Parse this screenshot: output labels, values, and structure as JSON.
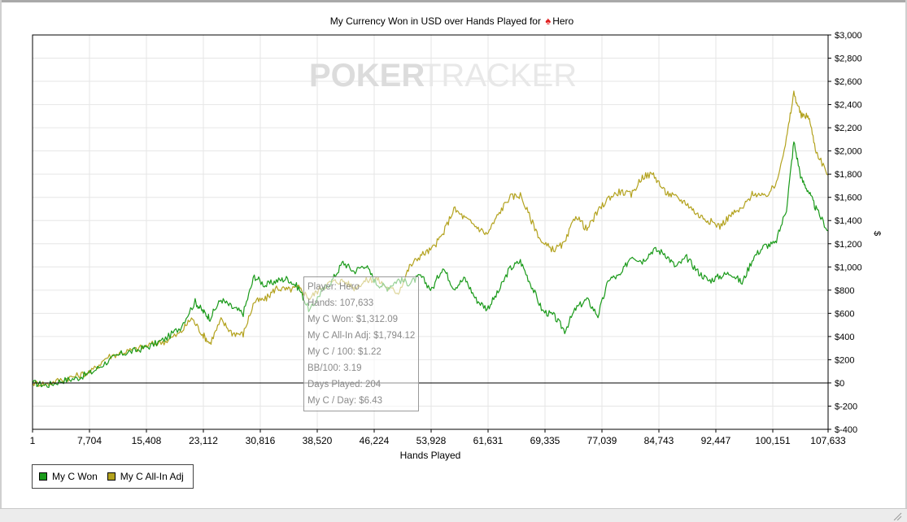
{
  "window": {
    "title_prefix": "My Currency Won in USD over Hands Played for",
    "title_player": "Hero"
  },
  "watermark": {
    "left": "POKER",
    "right": "TRACKER"
  },
  "colors": {
    "won": "#1a9a1a",
    "allin": "#b3a21e",
    "axis": "#000000",
    "grid": "#e6e6e6"
  },
  "tooltip": {
    "player": "Player: Hero",
    "hands": "Hands: 107,633",
    "won": "My C Won: $1,312.09",
    "allin": "My C All-In Adj: $1,794.12",
    "per100": "My C / 100: $1.22",
    "bb100": "BB/100: 3.19",
    "days": "Days Played: 204",
    "perday": "My C / Day: $6.43"
  },
  "chart_data": {
    "type": "line",
    "title": "My Currency Won in USD over Hands Played for Hero",
    "xlabel": "Hands Played",
    "ylabel": "$",
    "xlim": [
      1,
      107633
    ],
    "ylim": [
      -400,
      3000
    ],
    "x_ticks": [
      1,
      7704,
      15408,
      23112,
      30816,
      38520,
      46224,
      53928,
      61631,
      69335,
      77039,
      84743,
      92447,
      100151,
      107633
    ],
    "x_tick_labels": [
      "1",
      "7,704",
      "15,408",
      "23,112",
      "30,816",
      "38,520",
      "46,224",
      "53,928",
      "61,631",
      "69,335",
      "77,039",
      "84,743",
      "92,447",
      "100,151",
      "107,633"
    ],
    "y_ticks": [
      -400,
      -200,
      0,
      200,
      400,
      600,
      800,
      1000,
      1200,
      1400,
      1600,
      1800,
      2000,
      2200,
      2400,
      2600,
      2800,
      3000
    ],
    "y_tick_labels": [
      "$-400",
      "$-200",
      "$0",
      "$200",
      "$400",
      "$600",
      "$800",
      "$1,000",
      "$1,200",
      "$1,400",
      "$1,600",
      "$1,800",
      "$2,000",
      "$2,200",
      "$2,400",
      "$2,600",
      "$2,800",
      "$3,000"
    ],
    "grid": true,
    "legend_position": "bottom-left",
    "series": [
      {
        "name": "My C Won",
        "color": "#1a9a1a",
        "x": [
          1,
          2000,
          4000,
          6000,
          8000,
          10000,
          12000,
          14000,
          16000,
          18000,
          20000,
          22000,
          23000,
          24000,
          25500,
          27000,
          28500,
          30000,
          31500,
          33000,
          34500,
          36000,
          37500,
          39000,
          40500,
          42000,
          43500,
          45000,
          46500,
          48000,
          49500,
          51000,
          52500,
          54000,
          55500,
          57000,
          58500,
          60000,
          61500,
          63000,
          64500,
          66000,
          67500,
          69000,
          70500,
          72000,
          73500,
          75000,
          76500,
          78000,
          79500,
          81000,
          82500,
          84000,
          85500,
          87000,
          88500,
          90000,
          91500,
          93000,
          94500,
          96000,
          97500,
          99000,
          100500,
          102000,
          103000,
          104000,
          105000,
          106000,
          107633
        ],
        "y": [
          0,
          -20,
          20,
          40,
          90,
          180,
          250,
          280,
          320,
          380,
          480,
          700,
          620,
          560,
          720,
          650,
          600,
          920,
          840,
          880,
          900,
          820,
          620,
          780,
          880,
          1040,
          960,
          1020,
          860,
          820,
          890,
          860,
          920,
          800,
          1000,
          820,
          900,
          720,
          640,
          780,
          980,
          1050,
          840,
          620,
          580,
          450,
          640,
          720,
          580,
          900,
          920,
          1100,
          1050,
          1150,
          1120,
          1000,
          1080,
          960,
          880,
          920,
          950,
          860,
          1080,
          1180,
          1200,
          1500,
          2080,
          1760,
          1650,
          1500,
          1312
        ]
      },
      {
        "name": "My C All-In Adj",
        "color": "#b3a21e",
        "x": [
          1,
          2000,
          4000,
          6000,
          8000,
          10000,
          12000,
          14000,
          16000,
          18000,
          20000,
          21500,
          23000,
          24000,
          25500,
          27000,
          28500,
          30000,
          31500,
          33000,
          34500,
          36000,
          37500,
          39000,
          40500,
          42000,
          43500,
          45000,
          46500,
          48000,
          49500,
          51000,
          52500,
          54000,
          55500,
          57000,
          58500,
          60000,
          61500,
          63000,
          64500,
          66000,
          67500,
          69000,
          70500,
          72000,
          73500,
          75000,
          76500,
          78000,
          79500,
          81000,
          82500,
          84000,
          85500,
          87000,
          88500,
          90000,
          91500,
          93000,
          94500,
          96000,
          97500,
          99000,
          100500,
          102000,
          103000,
          104000,
          105000,
          106000,
          107633
        ],
        "y": [
          0,
          -10,
          30,
          60,
          100,
          220,
          260,
          290,
          330,
          360,
          430,
          560,
          420,
          340,
          540,
          430,
          420,
          700,
          720,
          820,
          800,
          820,
          730,
          820,
          870,
          880,
          820,
          880,
          900,
          820,
          780,
          1000,
          1100,
          1150,
          1280,
          1500,
          1420,
          1350,
          1280,
          1450,
          1600,
          1620,
          1400,
          1200,
          1150,
          1200,
          1450,
          1320,
          1480,
          1600,
          1650,
          1620,
          1780,
          1800,
          1650,
          1600,
          1550,
          1450,
          1400,
          1350,
          1450,
          1500,
          1640,
          1600,
          1700,
          2100,
          2500,
          2300,
          2300,
          2000,
          1794
        ]
      }
    ]
  },
  "legend": [
    {
      "label": "My C Won",
      "color": "#1a9a1a"
    },
    {
      "label": "My C All-In Adj",
      "color": "#b3a21e"
    }
  ]
}
